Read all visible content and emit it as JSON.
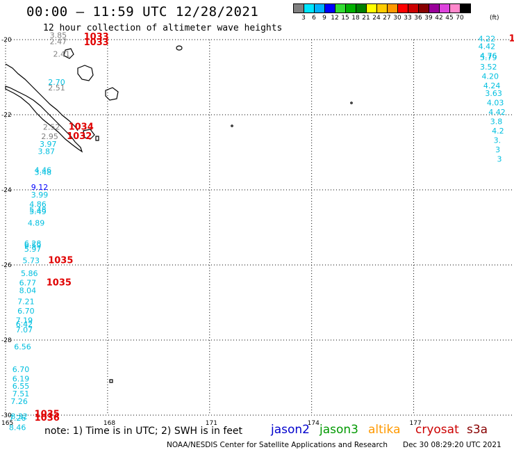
{
  "header": {
    "title": "00:00 – 11:59 UTC 12/28/2021",
    "subtitle": "12 hour collection of altimeter wave heights"
  },
  "colorbar": {
    "colors": [
      "#808080",
      "#00e5ff",
      "#00b0ff",
      "#0000ff",
      "#33dd33",
      "#00b000",
      "#008000",
      "#ffff00",
      "#ffcc00",
      "#ff9900",
      "#ff0000",
      "#cc0000",
      "#880000",
      "#990099",
      "#dd44dd",
      "#ff88cc",
      "#000000"
    ],
    "labels": [
      "3",
      "6",
      "9",
      "12",
      "15",
      "18",
      "21",
      "24",
      "27",
      "30",
      "33",
      "36",
      "39",
      "42",
      "45",
      "70"
    ],
    "unit": "(ft)"
  },
  "map": {
    "lat_labels": [
      "-20",
      "-22",
      "-24",
      "-26",
      "-28",
      "-30"
    ],
    "lon_labels": [
      "165",
      "168",
      "171",
      "174",
      "177"
    ],
    "wave_heights": [
      {
        "v": "3.85",
        "lat": -19.95,
        "lon": 166.3,
        "c": "#808080"
      },
      {
        "v": "2.47",
        "lat": -20.12,
        "lon": 166.3,
        "c": "#808080"
      },
      {
        "v": "2.41",
        "lat": -20.45,
        "lon": 166.4,
        "c": "#808080"
      },
      {
        "v": "2.70",
        "lat": -21.2,
        "lon": 166.25,
        "c": "#00bfdf"
      },
      {
        "v": "2.51",
        "lat": -21.35,
        "lon": 166.25,
        "c": "#808080"
      },
      {
        "v": "2.52",
        "lat": -22.4,
        "lon": 166.1,
        "c": "#808080"
      },
      {
        "v": "2.95",
        "lat": -22.65,
        "lon": 166.05,
        "c": "#808080"
      },
      {
        "v": "3.97",
        "lat": -22.85,
        "lon": 166.0,
        "c": "#00bfdf"
      },
      {
        "v": "3.87",
        "lat": -23.05,
        "lon": 165.95,
        "c": "#00bfdf"
      },
      {
        "v": "4.46",
        "lat": -23.55,
        "lon": 165.85,
        "c": "#00bfdf"
      },
      {
        "v": "3.48",
        "lat": -23.6,
        "lon": 165.85,
        "c": "#00bfdf"
      },
      {
        "v": "9.12",
        "lat": -24.0,
        "lon": 165.75,
        "c": "#0000ff"
      },
      {
        "v": "3.99",
        "lat": -24.2,
        "lon": 165.75,
        "c": "#00bfdf"
      },
      {
        "v": "4.86",
        "lat": -24.45,
        "lon": 165.7,
        "c": "#00bfdf"
      },
      {
        "v": "5.48",
        "lat": -24.6,
        "lon": 165.7,
        "c": "#00bfdf"
      },
      {
        "v": "5.49",
        "lat": -24.65,
        "lon": 165.7,
        "c": "#00bfdf"
      },
      {
        "v": "4.89",
        "lat": -24.95,
        "lon": 165.65,
        "c": "#00bfdf"
      },
      {
        "v": "6.28",
        "lat": -25.5,
        "lon": 165.55,
        "c": "#00bfdf"
      },
      {
        "v": "6.59",
        "lat": -25.55,
        "lon": 165.55,
        "c": "#00bfdf"
      },
      {
        "v": "5.97",
        "lat": -25.65,
        "lon": 165.55,
        "c": "#00bfdf"
      },
      {
        "v": "5.73",
        "lat": -25.95,
        "lon": 165.5,
        "c": "#00bfdf"
      },
      {
        "v": "5.86",
        "lat": -26.3,
        "lon": 165.45,
        "c": "#00bfdf"
      },
      {
        "v": "6.77",
        "lat": -26.55,
        "lon": 165.4,
        "c": "#00bfdf"
      },
      {
        "v": "8.04",
        "lat": -26.75,
        "lon": 165.4,
        "c": "#00bfdf"
      },
      {
        "v": "7.21",
        "lat": -27.05,
        "lon": 165.35,
        "c": "#00bfdf"
      },
      {
        "v": "6.70",
        "lat": -27.3,
        "lon": 165.35,
        "c": "#00bfdf"
      },
      {
        "v": "7.19",
        "lat": -27.55,
        "lon": 165.3,
        "c": "#00bfdf"
      },
      {
        "v": "6.42",
        "lat": -27.65,
        "lon": 165.3,
        "c": "#00bfdf"
      },
      {
        "v": "7.07",
        "lat": -27.8,
        "lon": 165.3,
        "c": "#00bfdf"
      },
      {
        "v": "6.56",
        "lat": -28.25,
        "lon": 165.25,
        "c": "#00bfdf"
      },
      {
        "v": "6.70",
        "lat": -28.85,
        "lon": 165.2,
        "c": "#00bfdf"
      },
      {
        "v": "6.19",
        "lat": -29.1,
        "lon": 165.2,
        "c": "#00bfdf"
      },
      {
        "v": "6.55",
        "lat": -29.3,
        "lon": 165.2,
        "c": "#00bfdf"
      },
      {
        "v": "7.51",
        "lat": -29.5,
        "lon": 165.2,
        "c": "#00bfdf"
      },
      {
        "v": "7.26",
        "lat": -29.7,
        "lon": 165.15,
        "c": "#00bfdf"
      },
      {
        "v": "8.32",
        "lat": -30.1,
        "lon": 165.15,
        "c": "#00bfdf"
      },
      {
        "v": "7.26",
        "lat": -30.15,
        "lon": 165.1,
        "c": "#00bfdf"
      },
      {
        "v": "8.46",
        "lat": -30.4,
        "lon": 165.1,
        "c": "#00bfdf"
      },
      {
        "v": "4.22",
        "lat": -20.05,
        "lon": 178.9,
        "c": "#00bfdf"
      },
      {
        "v": "4.42",
        "lat": -20.25,
        "lon": 178.9,
        "c": "#00bfdf"
      },
      {
        "v": "4.76",
        "lat": -20.5,
        "lon": 178.95,
        "c": "#00bfdf"
      },
      {
        "v": "5.79",
        "lat": -20.55,
        "lon": 178.95,
        "c": "#00bfdf"
      },
      {
        "v": "3.52",
        "lat": -20.8,
        "lon": 178.95,
        "c": "#00bfdf"
      },
      {
        "v": "4.20",
        "lat": -21.05,
        "lon": 179.0,
        "c": "#00bfdf"
      },
      {
        "v": "4.24",
        "lat": -21.3,
        "lon": 179.05,
        "c": "#00bfdf"
      },
      {
        "v": "3.63",
        "lat": -21.5,
        "lon": 179.1,
        "c": "#00bfdf"
      },
      {
        "v": "4.03",
        "lat": -21.75,
        "lon": 179.15,
        "c": "#00bfdf"
      },
      {
        "v": "4.42",
        "lat": -22.0,
        "lon": 179.2,
        "c": "#00bfdf"
      },
      {
        "v": "3.8",
        "lat": -22.25,
        "lon": 179.25,
        "c": "#00bfdf"
      },
      {
        "v": "4.2",
        "lat": -22.5,
        "lon": 179.3,
        "c": "#00bfdf"
      },
      {
        "v": "3.",
        "lat": -22.75,
        "lon": 179.35,
        "c": "#00bfdf"
      },
      {
        "v": "3",
        "lat": -23.0,
        "lon": 179.4,
        "c": "#00bfdf"
      },
      {
        "v": "3",
        "lat": -23.25,
        "lon": 179.45,
        "c": "#00bfdf"
      }
    ],
    "pressure_labels": [
      {
        "v": "1033",
        "lat": -20.0,
        "lon": 167.3
      },
      {
        "v": "1033",
        "lat": -20.15,
        "lon": 167.3
      },
      {
        "v": "1034",
        "lat": -22.4,
        "lon": 166.85
      },
      {
        "v": "1032",
        "lat": -22.65,
        "lon": 166.8
      },
      {
        "v": "1035",
        "lat": -25.95,
        "lon": 166.25
      },
      {
        "v": "1035",
        "lat": -26.55,
        "lon": 166.2
      },
      {
        "v": "1035",
        "lat": -30.05,
        "lon": 165.85
      },
      {
        "v": "1036",
        "lat": -30.15,
        "lon": 165.85
      },
      {
        "v": "1",
        "lat": -20.05,
        "lon": 179.8
      }
    ]
  },
  "note": "note: 1) Time is in UTC; 2) SWH is in feet",
  "legend": [
    {
      "label": "jason2",
      "color": "#0000cc"
    },
    {
      "label": "jason3",
      "color": "#009900"
    },
    {
      "label": "altika",
      "color": "#ff9900"
    },
    {
      "label": "cryosat",
      "color": "#cc0000"
    },
    {
      "label": "s3a",
      "color": "#880000"
    }
  ],
  "footer": {
    "credit": "NOAA/NESDIS Center for Satellite Applications and Research",
    "timestamp": "Dec 30 08:29:20 UTC 2021"
  }
}
